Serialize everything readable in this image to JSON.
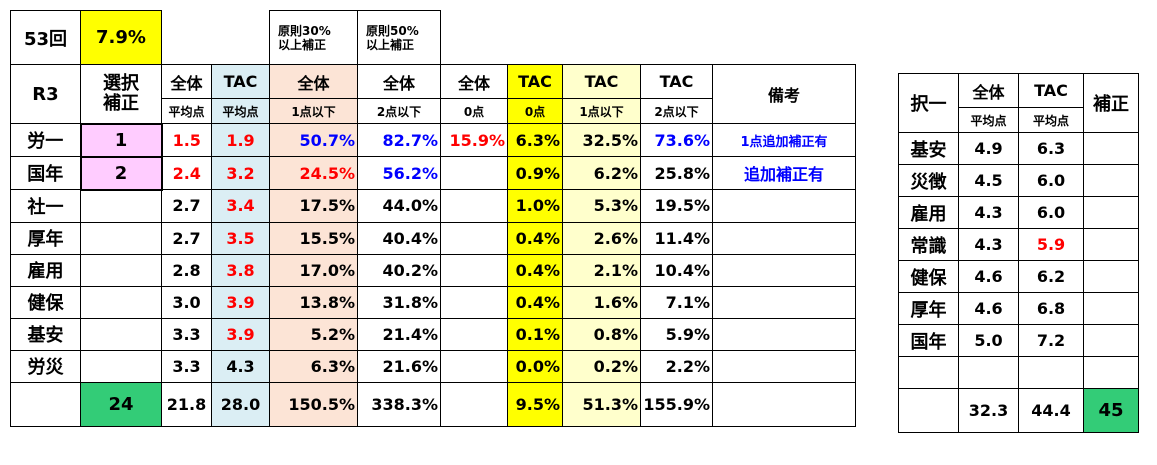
{
  "header": {
    "kai": "53回",
    "kai_rate": "7.9%",
    "gensoku30": "原則30%以上補正",
    "gensoku50": "原則50%以上補正"
  },
  "columns": {
    "r3": "R3",
    "sentaku": "選択補正",
    "zentai": "全体",
    "tac": "TAC",
    "bikou": "備考",
    "heikinten": "平均点",
    "ten1ika": "1点以下",
    "ten2ika": "2点以下",
    "ten0": "0点"
  },
  "rows": [
    {
      "subject": "労一",
      "hosei": "1",
      "zavg": "1.5",
      "tavg": "1.9",
      "z1": "50.7%",
      "z2": "82.7%",
      "z0": "15.9%",
      "t0": "6.3%",
      "t1": "32.5%",
      "t2": "73.6%",
      "note": "1点追加補正有"
    },
    {
      "subject": "国年",
      "hosei": "2",
      "zavg": "2.4",
      "tavg": "3.2",
      "z1": "24.5%",
      "z2": "56.2%",
      "z0": "",
      "t0": "0.9%",
      "t1": "6.2%",
      "t2": "25.8%",
      "note": "追加補正有"
    },
    {
      "subject": "社一",
      "hosei": "",
      "zavg": "2.7",
      "tavg": "3.4",
      "z1": "17.5%",
      "z2": "44.0%",
      "z0": "",
      "t0": "1.0%",
      "t1": "5.3%",
      "t2": "19.5%",
      "note": ""
    },
    {
      "subject": "厚年",
      "hosei": "",
      "zavg": "2.7",
      "tavg": "3.5",
      "z1": "15.5%",
      "z2": "40.4%",
      "z0": "",
      "t0": "0.4%",
      "t1": "2.6%",
      "t2": "11.4%",
      "note": ""
    },
    {
      "subject": "雇用",
      "hosei": "",
      "zavg": "2.8",
      "tavg": "3.8",
      "z1": "17.0%",
      "z2": "40.2%",
      "z0": "",
      "t0": "0.4%",
      "t1": "2.1%",
      "t2": "10.4%",
      "note": ""
    },
    {
      "subject": "健保",
      "hosei": "",
      "zavg": "3.0",
      "tavg": "3.9",
      "z1": "13.8%",
      "z2": "31.8%",
      "z0": "",
      "t0": "0.4%",
      "t1": "1.6%",
      "t2": "7.1%",
      "note": ""
    },
    {
      "subject": "基安",
      "hosei": "",
      "zavg": "3.3",
      "tavg": "3.9",
      "z1": "5.2%",
      "z2": "21.4%",
      "z0": "",
      "t0": "0.1%",
      "t1": "0.8%",
      "t2": "5.9%",
      "note": ""
    },
    {
      "subject": "労災",
      "hosei": "",
      "zavg": "3.3",
      "tavg": "4.3",
      "z1": "6.3%",
      "z2": "21.6%",
      "z0": "",
      "t0": "0.0%",
      "t1": "0.2%",
      "t2": "2.2%",
      "note": ""
    }
  ],
  "totals": {
    "hosei": "24",
    "zavg": "21.8",
    "tavg": "28.0",
    "z1": "150.5%",
    "z2": "338.3%",
    "t0": "9.5%",
    "t1": "51.3%",
    "t2": "155.9%"
  },
  "side": {
    "header": {
      "taku": "択一",
      "zentai": "全体",
      "tac": "TAC",
      "hosei": "補正",
      "heikinten": "平均点"
    },
    "rows": [
      {
        "subject": "基安",
        "zavg": "4.9",
        "tavg": "6.3"
      },
      {
        "subject": "災徴",
        "zavg": "4.5",
        "tavg": "6.0"
      },
      {
        "subject": "雇用",
        "zavg": "4.3",
        "tavg": "6.0"
      },
      {
        "subject": "常識",
        "zavg": "4.3",
        "tavg": "5.9"
      },
      {
        "subject": "健保",
        "zavg": "4.6",
        "tavg": "6.2"
      },
      {
        "subject": "厚年",
        "zavg": "4.6",
        "tavg": "6.8"
      },
      {
        "subject": "国年",
        "zavg": "5.0",
        "tavg": "7.2"
      },
      {
        "subject": "",
        "zavg": "",
        "tavg": ""
      }
    ],
    "totals": {
      "zavg": "32.3",
      "tavg": "44.4",
      "hosei": "45"
    }
  },
  "colors": {
    "yellow": "#ffff00",
    "light_yellow": "#ffffcc",
    "light_blue": "#dbeef4",
    "peach": "#fce4d6",
    "pink": "#ffccff",
    "green": "#33cc77",
    "red": "#ff0000",
    "blue": "#0000ff"
  }
}
